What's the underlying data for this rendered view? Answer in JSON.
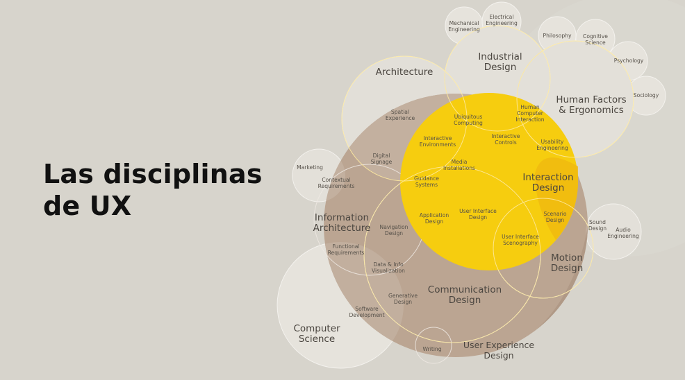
{
  "title": {
    "line1": "Las disciplinas",
    "line2": "de UX"
  },
  "colors": {
    "background": "#d7d4cc",
    "ux_circle": "#bba592",
    "ux_circle_dark": "#a88f7c",
    "interaction": "#f6cd0f",
    "interaction_dark": "#f0b90f",
    "bubble": "#e6e3dc"
  },
  "diagram": {
    "large": {
      "architecture": "Architecture",
      "industrial_design": [
        "Industrial",
        "Design"
      ],
      "human_factors": [
        "Human Factors",
        "& Ergonomics"
      ],
      "interaction_design": [
        "Interaction",
        "Design"
      ],
      "information_architecture": [
        "Information",
        "Architecture"
      ],
      "motion_design": [
        "Motion",
        "Design"
      ],
      "communication_design": [
        "Communication",
        "Design"
      ],
      "computer_science": [
        "Computer",
        "Science"
      ],
      "ux_design": [
        "User Experience",
        "Design"
      ]
    },
    "small": {
      "mechanical_engineering": [
        "Mechanical",
        "Engineering"
      ],
      "electrical_engineering": [
        "Electrical",
        "Engineering"
      ],
      "philosophy": "Philosophy",
      "cognitive_science": [
        "Cognitive",
        "Science"
      ],
      "psychology": "Psychology",
      "sociology": "Sociology",
      "spatial_experience": [
        "Spatial",
        "Experience"
      ],
      "ubiquitous_computing": [
        "Ubiquitous",
        "Computing"
      ],
      "hci": [
        "Human",
        "Computer",
        "Interaction"
      ],
      "interactive_environments": [
        "Interactive",
        "Environments"
      ],
      "interactive_controls": [
        "Interactive",
        "Controls"
      ],
      "usability_engineering": [
        "Usability",
        "Engineering"
      ],
      "digital_signage": [
        "Digital",
        "Signage"
      ],
      "media_installations": [
        "Media",
        "Installations"
      ],
      "marketing": "Marketing",
      "contextual_requirements": [
        "Contextual",
        "Requirements"
      ],
      "guidance_systems": [
        "Guidance",
        "Systems"
      ],
      "application_design": [
        "Application",
        "Design"
      ],
      "ui_design": [
        "User Interface",
        "Design"
      ],
      "scenario_design": [
        "Scenario",
        "Design"
      ],
      "sound_design": [
        "Sound",
        "Design"
      ],
      "audio_engineering": [
        "Audio",
        "Engineering"
      ],
      "navigation_design": [
        "Navigation",
        "Design"
      ],
      "ui_scenography": [
        "User Interface",
        "Scenography"
      ],
      "functional_requirements": [
        "Functional",
        "Requirements"
      ],
      "data_info_viz": [
        "Data & Info",
        "Visualization"
      ],
      "generative_design": [
        "Generative",
        "Design"
      ],
      "software_development": [
        "Software",
        "Development"
      ],
      "writing": "Writing"
    }
  }
}
